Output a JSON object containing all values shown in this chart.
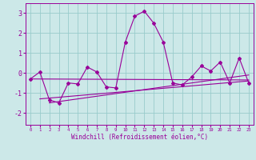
{
  "xlabel": "Windchill (Refroidissement éolien,°C)",
  "background_color": "#cce8e8",
  "grid_color": "#99cccc",
  "line_color": "#990099",
  "xlim": [
    -0.5,
    23.5
  ],
  "ylim": [
    -2.6,
    3.5
  ],
  "yticks": [
    -2,
    -1,
    0,
    1,
    2,
    3
  ],
  "xticks": [
    0,
    1,
    2,
    3,
    4,
    5,
    6,
    7,
    8,
    9,
    10,
    11,
    12,
    13,
    14,
    15,
    16,
    17,
    18,
    19,
    20,
    21,
    22,
    23
  ],
  "series1": [
    [
      0,
      -0.3
    ],
    [
      1,
      0.05
    ],
    [
      2,
      -1.35
    ],
    [
      3,
      -1.5
    ],
    [
      4,
      -0.5
    ],
    [
      5,
      -0.55
    ],
    [
      6,
      0.3
    ],
    [
      7,
      0.05
    ],
    [
      8,
      -0.7
    ],
    [
      9,
      -0.75
    ],
    [
      10,
      1.55
    ],
    [
      11,
      2.85
    ],
    [
      12,
      3.1
    ],
    [
      13,
      2.5
    ],
    [
      14,
      1.55
    ],
    [
      15,
      -0.5
    ],
    [
      16,
      -0.6
    ],
    [
      17,
      -0.2
    ],
    [
      18,
      0.35
    ],
    [
      19,
      0.1
    ],
    [
      20,
      0.55
    ],
    [
      21,
      -0.5
    ],
    [
      22,
      0.75
    ],
    [
      23,
      -0.5
    ]
  ],
  "trendline1": [
    [
      1,
      -1.3
    ],
    [
      23,
      -0.4
    ]
  ],
  "trendline2": [
    [
      2,
      -1.5
    ],
    [
      23,
      -0.1
    ]
  ],
  "trendline3": [
    [
      0,
      -0.3
    ],
    [
      23,
      -0.35
    ]
  ]
}
